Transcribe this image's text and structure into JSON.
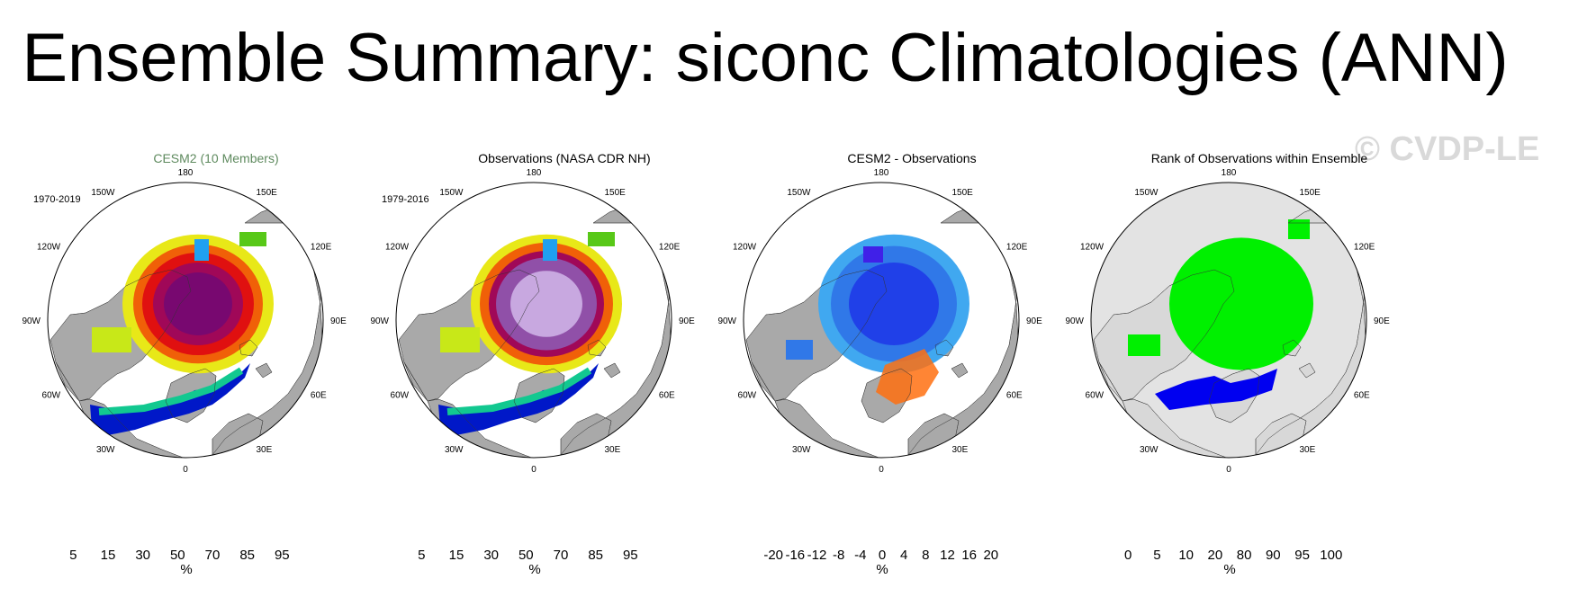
{
  "figure": {
    "title": "Ensemble Summary: siconc Climatologies (ANN)",
    "watermark": "© CVDP-LE"
  },
  "colors": {
    "land": "#a9a9a9",
    "ocean": "#ffffff",
    "outside_land_rank": "#e3e3e3"
  },
  "chart_data": [
    {
      "type": "heatmap",
      "title": "CESM2 (10 Members)",
      "period": "1970-2019",
      "projection": "north polar stereographic",
      "lon_labels": [
        "180",
        "150E",
        "120E",
        "90E",
        "60E",
        "30E",
        "0",
        "30W",
        "60W",
        "90W",
        "120W",
        "150W"
      ],
      "colorbar": {
        "colors": [
          "#00e5ee",
          "#20a0f0",
          "#1060f0",
          "#0018c8",
          "#12c890",
          "#58c818",
          "#e8e818",
          "#f0a808",
          "#f06008",
          "#e01010",
          "#c00838",
          "#a00858",
          "#780870",
          "#9050a8",
          "#c8a8e0"
        ],
        "tick_labels": [
          "5",
          "15",
          "30",
          "50",
          "70",
          "85",
          "95"
        ],
        "units": "%"
      }
    },
    {
      "type": "heatmap",
      "title": "Observations (NASA CDR NH)",
      "period": "1979-2016",
      "projection": "north polar stereographic",
      "lon_labels": [
        "180",
        "150E",
        "120E",
        "90E",
        "60E",
        "30E",
        "0",
        "30W",
        "60W",
        "90W",
        "120W",
        "150W"
      ],
      "colorbar": {
        "colors": [
          "#00e5ee",
          "#20a0f0",
          "#1060f0",
          "#0018c8",
          "#12c890",
          "#58c818",
          "#e8e818",
          "#f0a808",
          "#f06008",
          "#e01010",
          "#c00838",
          "#a00858",
          "#780870",
          "#9050a8",
          "#c8a8e0"
        ],
        "tick_labels": [
          "5",
          "15",
          "30",
          "50",
          "70",
          "85",
          "95"
        ],
        "units": "%"
      }
    },
    {
      "type": "heatmap",
      "title": "CESM2 - Observations",
      "projection": "north polar stereographic",
      "lon_labels": [
        "180",
        "150E",
        "120E",
        "90E",
        "60E",
        "30E",
        "0",
        "30W",
        "60W",
        "90W",
        "120W",
        "150W"
      ],
      "colorbar": {
        "colors": [
          "#8a2be2",
          "#4020e8",
          "#2040e8",
          "#2860e8",
          "#3078e8",
          "#3890e8",
          "#40a8f0",
          "#60c0f0",
          "#a8d8f0",
          "#ffffa8",
          "#ffe070",
          "#ffc040",
          "#ffa020",
          "#ff7010",
          "#ff4010",
          "#e81010",
          "#c01818",
          "#e06060",
          "#f8b0b0"
        ],
        "tick_labels": [
          "-20",
          "-16",
          "-12",
          "-8",
          "-4",
          "0",
          "4",
          "8",
          "12",
          "16",
          "20"
        ],
        "units": "%"
      }
    },
    {
      "type": "heatmap",
      "title": "Rank of Observations within Ensemble",
      "projection": "north polar stereographic",
      "lon_labels": [
        "180",
        "150E",
        "120E",
        "90E",
        "60E",
        "30E",
        "0",
        "30W",
        "60W",
        "90W",
        "120W",
        "150W"
      ],
      "colorbar": {
        "colors": [
          "#0000f0",
          "#7070f0",
          "#b8b8f8",
          "#e4e4fa",
          "#e4e4fa",
          "#ffffff",
          "#ffffff",
          "#e4fae4",
          "#e4fae4",
          "#b8f8b8",
          "#70f070",
          "#00f000"
        ],
        "tick_labels": [
          "0",
          "5",
          "10",
          "20",
          "80",
          "90",
          "95",
          "100"
        ],
        "units": "%"
      }
    }
  ]
}
